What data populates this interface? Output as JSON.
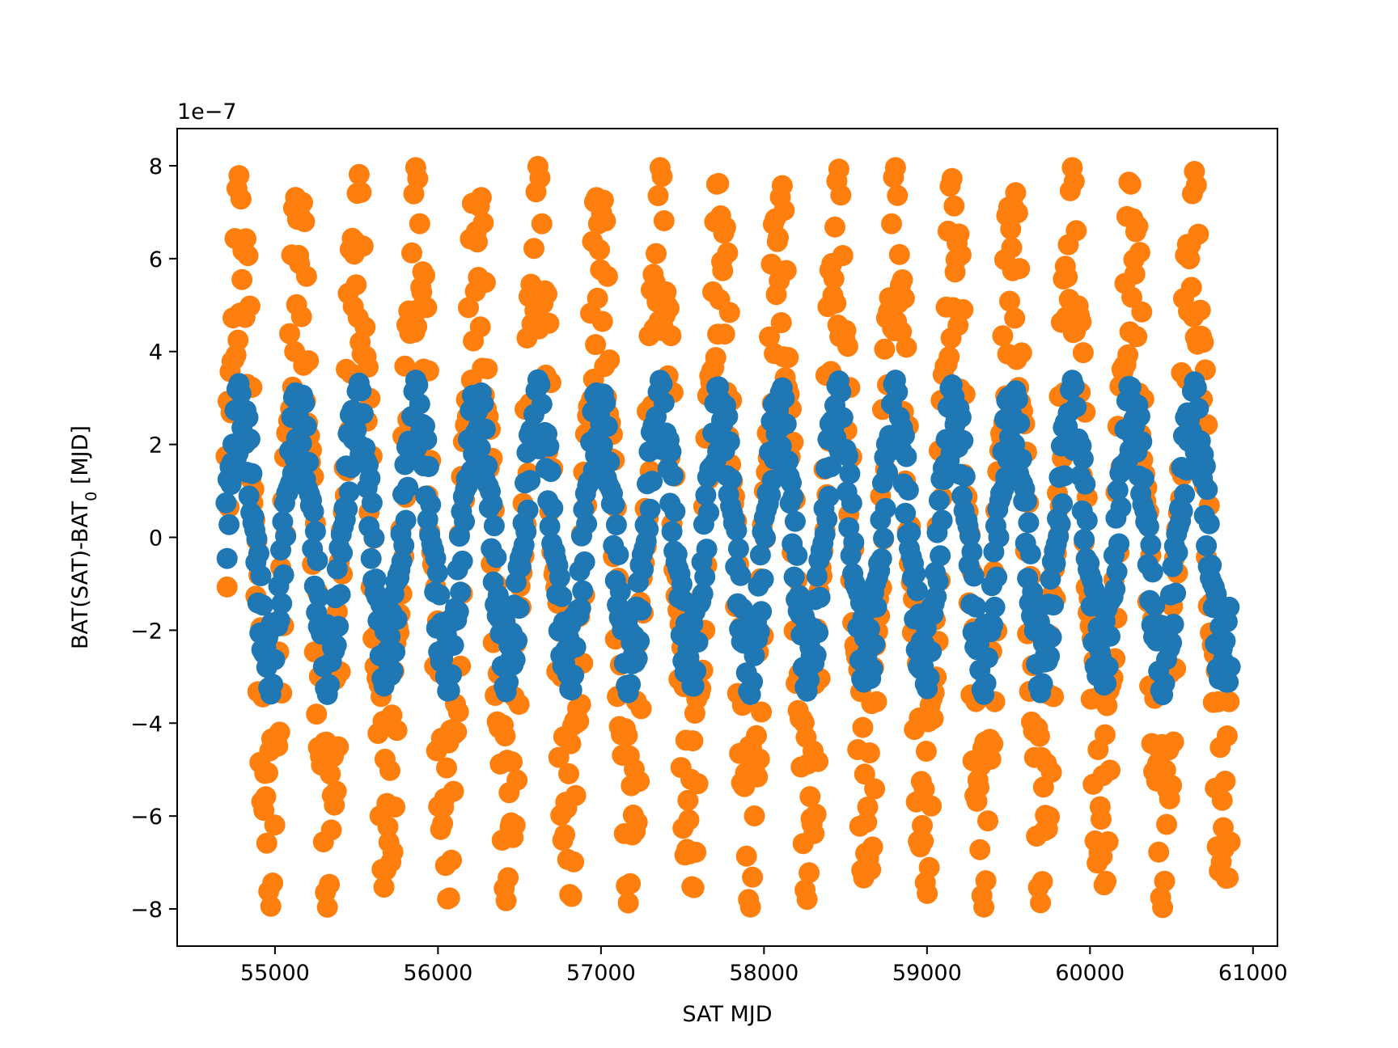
{
  "chart_data": {
    "type": "scatter",
    "title": "",
    "xlabel": "SAT MJD",
    "ylabel_main": "BAT(SAT)-BAT",
    "ylabel_sub": "0",
    "ylabel_unit": " [MJD]",
    "offset_text": "1e−7",
    "xlim": [
      54400,
      61150
    ],
    "ylim": [
      -8.8,
      8.8
    ],
    "x_ticks": [
      55000,
      56000,
      57000,
      58000,
      59000,
      60000,
      61000
    ],
    "x_tick_labels": [
      "55000",
      "56000",
      "57000",
      "58000",
      "59000",
      "60000",
      "61000"
    ],
    "y_ticks": [
      -8,
      -6,
      -4,
      -2,
      0,
      2,
      4,
      6,
      8
    ],
    "y_tick_labels": [
      "−8",
      "−6",
      "−4",
      "−2",
      "0",
      "2",
      "4",
      "6",
      "8"
    ],
    "grid": false,
    "legend": "none",
    "x_range": [
      54700,
      60860
    ],
    "series": [
      {
        "color": "#ff7f0e",
        "envelope": [
          -8.0,
          8.0
        ],
        "period_days": 365.25,
        "points_per_year": 60
      },
      {
        "color": "#1f77b4",
        "envelope": [
          -3.4,
          3.4
        ],
        "period_days": 365.25,
        "points_per_year": 60
      }
    ]
  }
}
